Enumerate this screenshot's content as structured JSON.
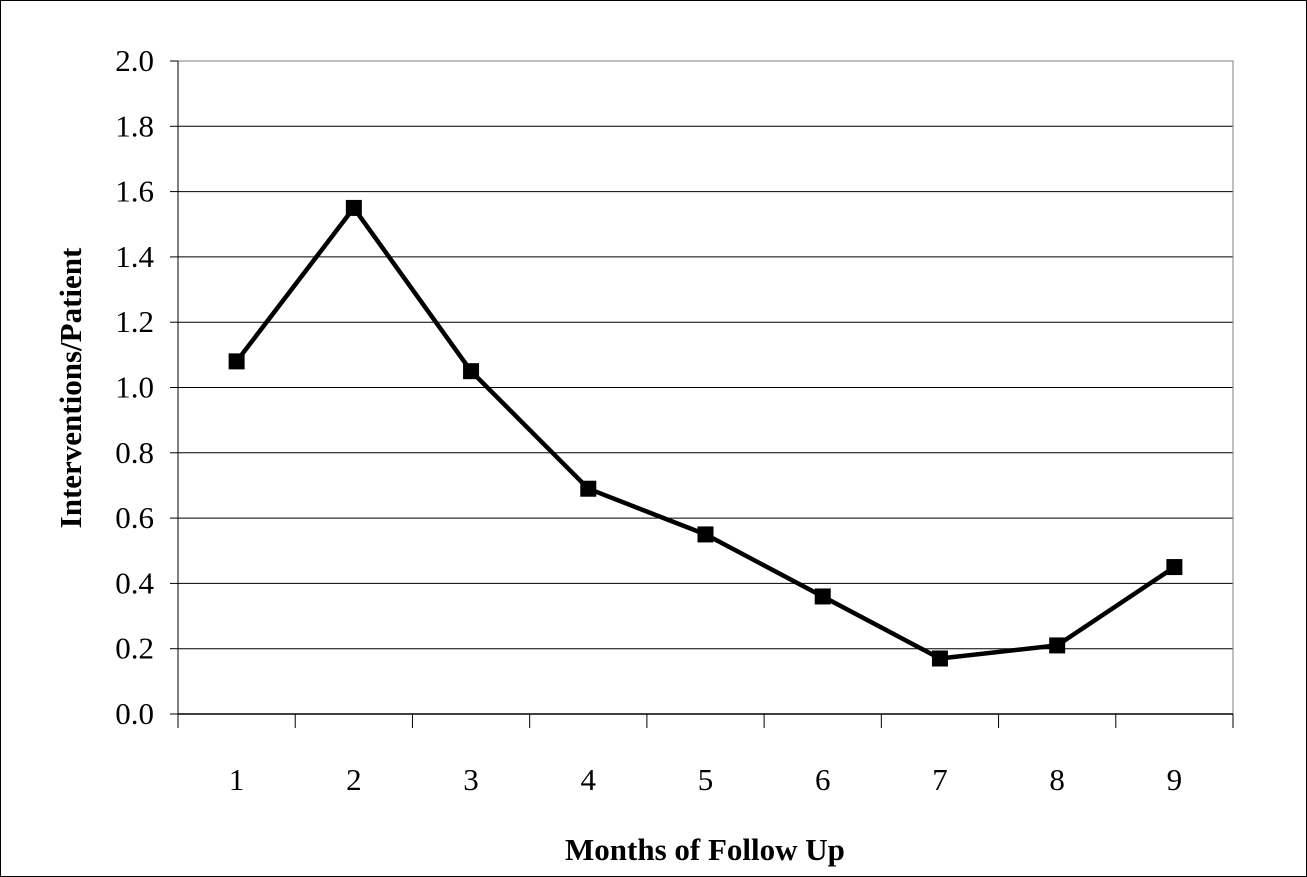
{
  "chart_data": {
    "type": "line",
    "title": "",
    "xlabel": "Months of Follow Up",
    "ylabel": "Interventions/Patient",
    "categories": [
      "1",
      "2",
      "3",
      "4",
      "5",
      "6",
      "7",
      "8",
      "9"
    ],
    "series": [
      {
        "values": [
          1.08,
          1.55,
          1.05,
          0.69,
          0.55,
          0.36,
          0.17,
          0.21,
          0.45
        ]
      }
    ],
    "ylim": [
      0,
      2.0
    ],
    "yticks": [
      "0.0",
      "0.2",
      "0.4",
      "0.6",
      "0.8",
      "1.0",
      "1.2",
      "1.4",
      "1.6",
      "1.8",
      "2.0"
    ],
    "grid": "horizontal",
    "marker": "square",
    "colors": {
      "line": "#000000",
      "grid": "#000000",
      "frame": "#000000",
      "plot_border": "#808080"
    }
  }
}
